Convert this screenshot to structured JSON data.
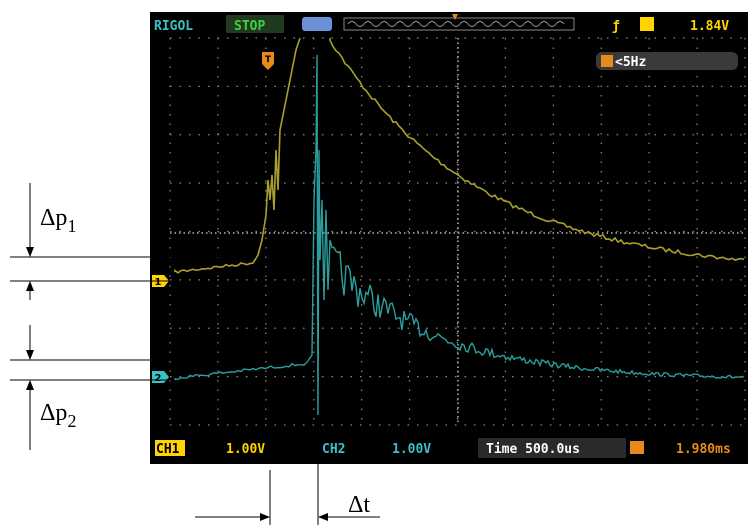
{
  "scope": {
    "brand": "RIGOL",
    "status": "STOP",
    "trigger_level": "1.84V",
    "trigger_freq": "<5Hz",
    "ch1_label": "CH1",
    "ch1_scale": "1.00V",
    "ch2_label": "CH2",
    "ch2_scale": "1.00V",
    "timebase": "Time 500.0us",
    "trigger_delay": "1.980ms",
    "ch1_marker": "1",
    "ch2_marker": "2",
    "trigger_marker": "T"
  },
  "annotations": {
    "dp1": {
      "main": "Δp",
      "sub": "1"
    },
    "dp2": {
      "main": "Δp",
      "sub": "2"
    },
    "dt": "Δt"
  }
}
